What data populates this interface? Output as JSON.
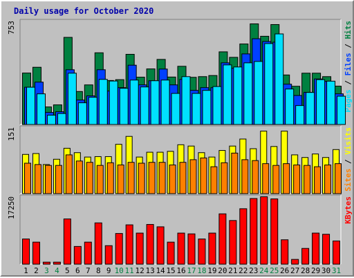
{
  "chart_data": {
    "type": "bar",
    "title": "Daily usage for October 2020",
    "days": [
      "1",
      "2",
      "3",
      "4",
      "5",
      "6",
      "7",
      "8",
      "9",
      "10",
      "11",
      "12",
      "13",
      "14",
      "15",
      "16",
      "17",
      "18",
      "19",
      "20",
      "21",
      "22",
      "23",
      "24",
      "25",
      "26",
      "27",
      "28",
      "29",
      "30",
      "31"
    ],
    "weekend_days": [
      "3",
      "4",
      "10",
      "11",
      "17",
      "18",
      "24",
      "25",
      "31"
    ],
    "panels": [
      {
        "name": "hits-files-pages",
        "max_label": "753",
        "axis_max": 753,
        "legend": [
          "Pages",
          "Files",
          "Hits"
        ],
        "series": [
          {
            "name": "Hits",
            "color": "#008040",
            "values": [
              376,
              418,
              130,
              145,
              635,
              242,
              290,
              523,
              322,
              328,
              512,
              346,
              406,
              475,
              347,
              425,
              345,
              350,
              358,
              530,
              490,
              587,
              733,
              643,
              728,
              362,
              280,
              375,
              375,
              350,
              281
            ]
          },
          {
            "name": "Files",
            "color": "#0040ff",
            "values": [
              273,
              310,
              90,
              95,
              400,
              180,
              210,
              400,
              245,
              270,
              433,
              290,
              320,
              405,
              290,
              330,
              250,
              270,
              270,
              450,
              410,
              515,
              625,
              605,
              600,
              295,
              213,
              236,
              333,
              315,
              225
            ]
          },
          {
            "name": "Pages",
            "color": "#00e0ff",
            "values": [
              273,
              225,
              70,
              82,
              375,
              160,
              200,
              330,
              318,
              265,
              325,
              275,
              320,
              325,
              228,
              350,
              228,
              250,
              278,
              435,
              420,
              450,
              460,
              590,
              660,
              260,
              140,
              235,
              328,
              317,
              208
            ]
          }
        ]
      },
      {
        "name": "visits-sites",
        "max_label": "151",
        "axis_max": 151,
        "legend": [
          "Sites",
          "Visits"
        ],
        "series": [
          {
            "name": "Visits",
            "color": "#ffff00",
            "values": [
              90,
              92,
              67,
              79,
              104,
              94,
              84,
              85,
              85,
              113,
              131,
              84,
              95,
              95,
              97,
              112,
              109,
              94,
              84,
              99,
              109,
              125,
              103,
              143,
              108,
              143,
              89,
              83,
              91,
              83,
              101
            ]
          },
          {
            "name": "Sites",
            "color": "#ff8000",
            "values": [
              70,
              67,
              65,
              65,
              89,
              75,
              72,
              65,
              71,
              66,
              72,
              70,
              72,
              72,
              66,
              72,
              78,
              82,
              62,
              71,
              93,
              78,
              76,
              69,
              65,
              69,
              66,
              65,
              62,
              66,
              69
            ]
          }
        ]
      },
      {
        "name": "kbytes",
        "max_label": "17250",
        "axis_max": 17250,
        "legend": [
          "KBytes"
        ],
        "series": [
          {
            "name": "KBytes",
            "color": "#ff0000",
            "values": [
              6500,
              5700,
              600,
              600,
              11600,
              4600,
              5700,
              10600,
              4800,
              7900,
              10100,
              8000,
              10200,
              9600,
              5700,
              8000,
              7800,
              6500,
              8000,
              12900,
              11200,
              14200,
              16800,
              17250,
              16700,
              6300,
              1300,
              4100,
              8000,
              7700,
              6000
            ]
          }
        ]
      }
    ]
  }
}
